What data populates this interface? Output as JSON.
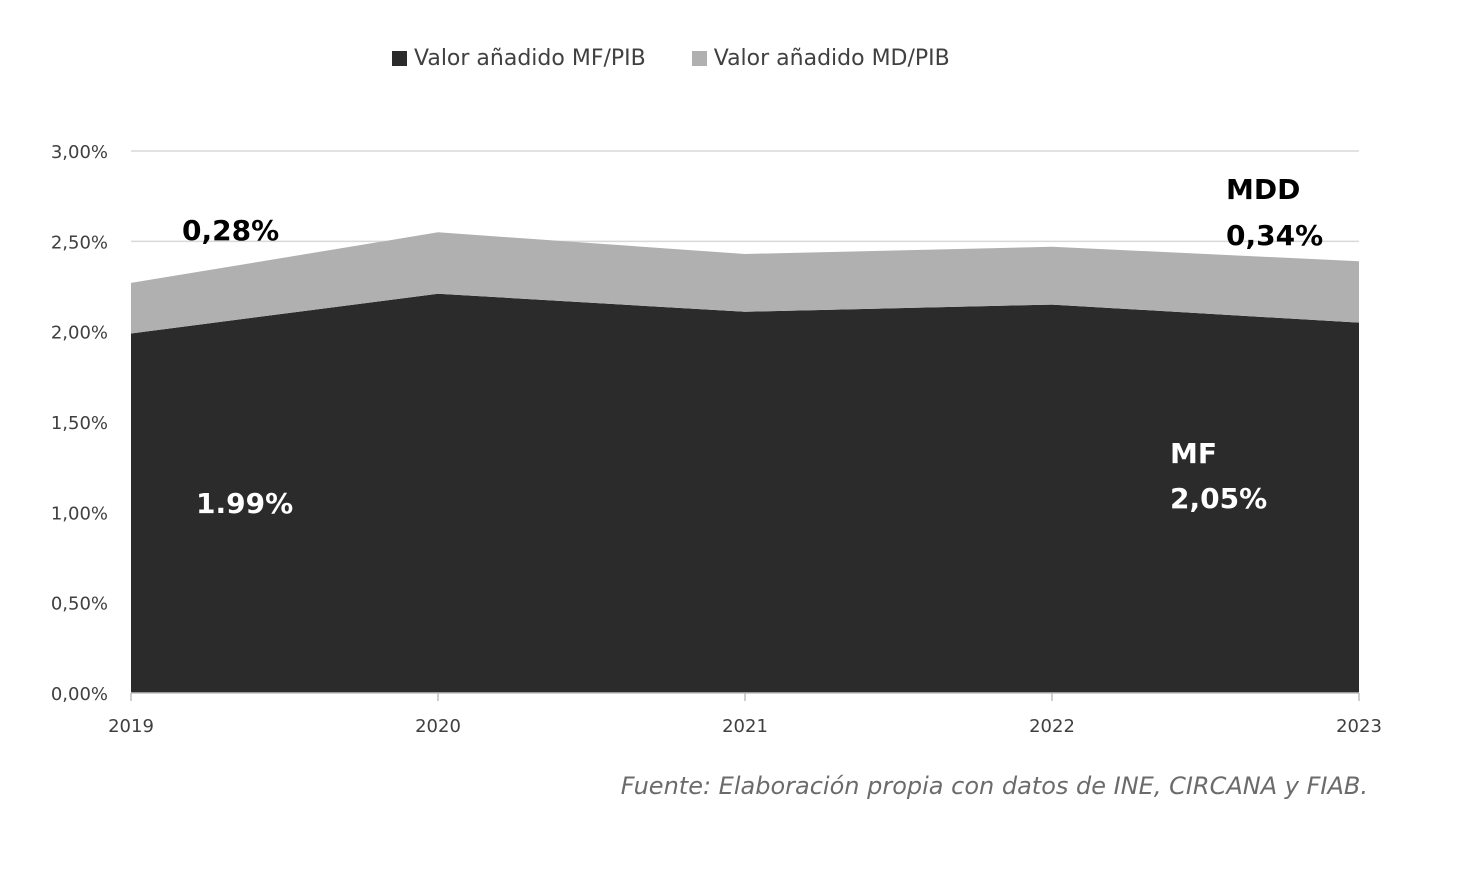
{
  "chart_data": {
    "type": "area",
    "stacked": true,
    "x": [
      "2019",
      "2020",
      "2021",
      "2022",
      "2023"
    ],
    "series": [
      {
        "name": "Valor añadido MF/PIB",
        "values": [
          1.99,
          2.21,
          2.11,
          2.15,
          2.05
        ],
        "color": "#2b2b2b"
      },
      {
        "name": "Valor añadido MD/PIB",
        "values": [
          0.28,
          0.34,
          0.32,
          0.32,
          0.34
        ],
        "color": "#b0b0b0"
      }
    ],
    "ylim": [
      0,
      3
    ],
    "yticks": [
      "0,00%",
      "0,50%",
      "1,00%",
      "1,50%",
      "2,00%",
      "2,50%",
      "3,00%"
    ],
    "grid": true,
    "legend_position": "top"
  },
  "annotations": {
    "md_2019": "0,28%",
    "mdd_label": "MDD",
    "mdd_2023": "0,34%",
    "mf_2019": "1.99%",
    "mf_label": "MF",
    "mf_2023": "2,05%"
  },
  "source": {
    "prefix": "Fuente:",
    "text": " Elaboración propia con datos de INE, CIRCANA y FIAB."
  }
}
